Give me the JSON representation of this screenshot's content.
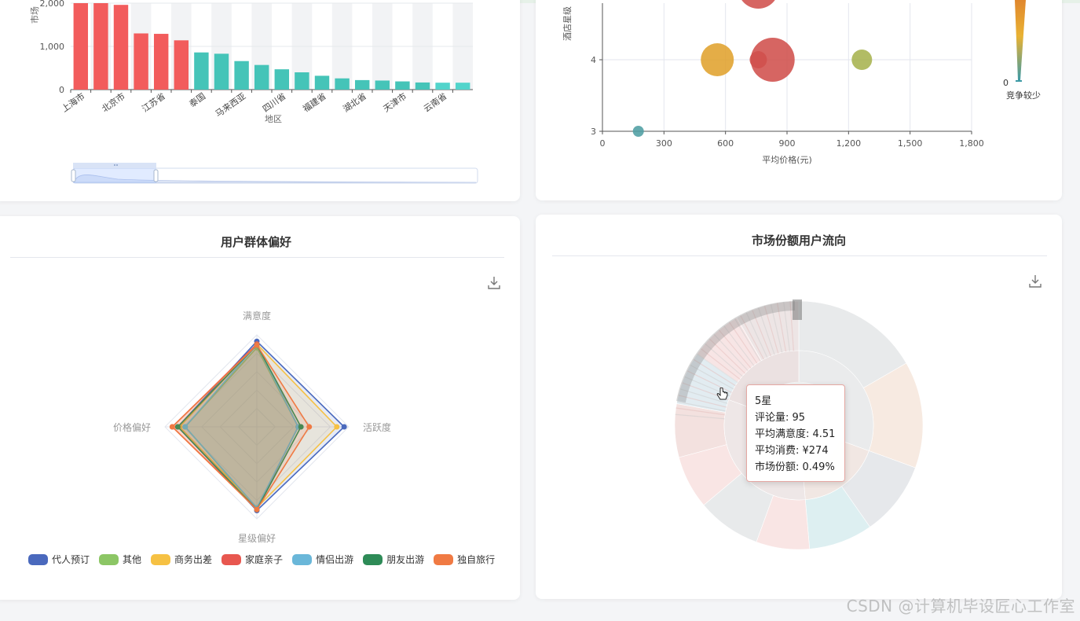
{
  "bar_chart": {
    "ylabel": "市场",
    "xlabel": "地区",
    "y_ticks": [
      "0",
      "1,000",
      "2,000"
    ],
    "x_tick_labels": [
      "上海市",
      "北京市",
      "江苏省",
      "泰国",
      "马来西亚",
      "四川省",
      "福建省",
      "湖北省",
      "天津市",
      "云南省"
    ]
  },
  "bubble_chart": {
    "ylabel": "酒店星级",
    "xlabel": "平均价格(元)",
    "x_ticks": [
      "0",
      "300",
      "600",
      "900",
      "1,200",
      "1,500",
      "1,800"
    ],
    "y_ticks": [
      "3",
      "4"
    ],
    "visualmap_min": "0",
    "visualmap_label": "竞争较少"
  },
  "radar_card": {
    "title": "用户群体偏好",
    "indicators": [
      "满意度",
      "活跃度",
      "星级偏好",
      "价格偏好"
    ],
    "legend": [
      {
        "name": "代人预订",
        "color": "#4a69bd"
      },
      {
        "name": "其他",
        "color": "#8cc665"
      },
      {
        "name": "商务出差",
        "color": "#f6c143"
      },
      {
        "name": "家庭亲子",
        "color": "#e8574f"
      },
      {
        "name": "情侣出游",
        "color": "#6ab7d9"
      },
      {
        "name": "朋友出游",
        "color": "#2e8b57"
      },
      {
        "name": "独自旅行",
        "color": "#f07a43"
      }
    ]
  },
  "sunburst_card": {
    "title": "市场份额用户流向",
    "tooltip": {
      "title": "5星",
      "line1": "评论量: 95",
      "line2": "平均满意度: 4.51",
      "line3": "平均消费: ¥274",
      "line4": "市场份额: 0.49%"
    }
  },
  "watermark": "CSDN @计算机毕设匠心工作室",
  "chart_data": [
    {
      "type": "bar",
      "title": "",
      "xlabel": "地区",
      "ylabel": "市场",
      "ylim": [
        0,
        2000
      ],
      "categories": [
        "上海市",
        "",
        "北京市",
        "",
        "江苏省",
        "",
        "泰国",
        "",
        "马来西亚",
        "",
        "四川省",
        "",
        "福建省",
        "",
        "湖北省",
        "",
        "天津市",
        "",
        "云南省",
        ""
      ],
      "values": [
        2000,
        2000,
        1960,
        1300,
        1290,
        1140,
        860,
        830,
        660,
        570,
        470,
        400,
        320,
        260,
        220,
        210,
        190,
        165,
        160,
        160
      ],
      "colors_note": "first 6 red #f25c5c, next 12 teal #45c4b8, last 2 light teal"
    },
    {
      "type": "scatter",
      "title": "",
      "xlabel": "平均价格(元)",
      "ylabel": "酒店星级",
      "xlim": [
        0,
        1800
      ],
      "points": [
        {
          "x": 175,
          "y": 3,
          "color": "#4e9ea3"
        },
        {
          "x": 560,
          "y": 4,
          "color": "#e0a22d"
        },
        {
          "x": 760,
          "y": 4,
          "color": "#d0504c"
        },
        {
          "x": 830,
          "y": 4,
          "color": "#d0504c"
        },
        {
          "x": 1265,
          "y": 4,
          "color": "#a7b34f"
        },
        {
          "x": 760,
          "y": 5,
          "color": "#d0504c"
        }
      ]
    },
    {
      "type": "radar",
      "title": "用户群体偏好",
      "indicators": [
        "满意度",
        "活跃度",
        "星级偏好",
        "价格偏好"
      ],
      "series": [
        {
          "name": "代人预订",
          "values": [
            0.93,
            0.95,
            0.91,
            0.86
          ]
        },
        {
          "name": "其他",
          "values": [
            0.86,
            0.45,
            0.89,
            0.78
          ]
        },
        {
          "name": "商务出差",
          "values": [
            0.9,
            0.87,
            0.88,
            0.84
          ]
        },
        {
          "name": "家庭亲子",
          "values": [
            0.9,
            0.45,
            0.89,
            0.92
          ]
        },
        {
          "name": "情侣出游",
          "values": [
            0.89,
            0.45,
            0.88,
            0.78
          ]
        },
        {
          "name": "朋友出游",
          "values": [
            0.89,
            0.48,
            0.9,
            0.86
          ]
        },
        {
          "name": "独自旅行",
          "values": [
            0.89,
            0.57,
            0.9,
            0.92
          ]
        }
      ]
    }
  ]
}
